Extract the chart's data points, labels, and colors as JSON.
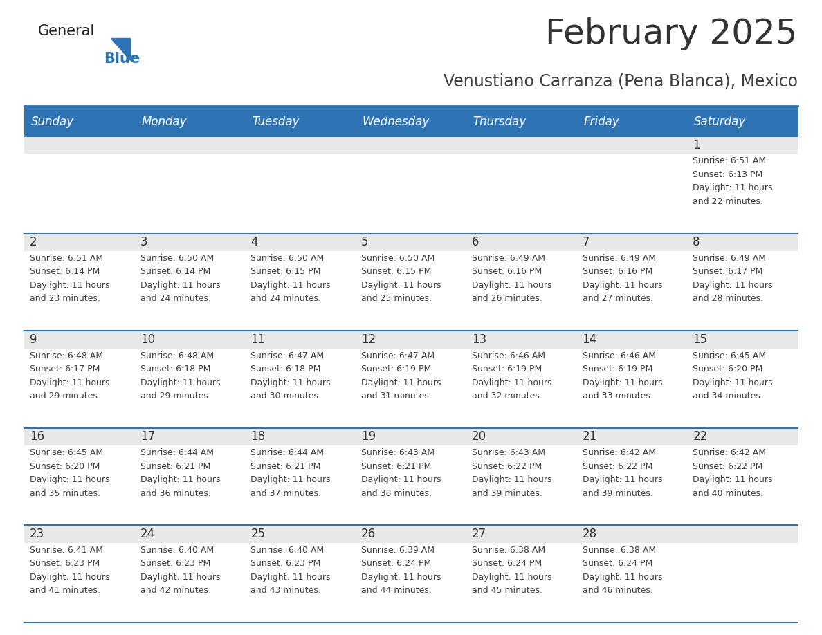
{
  "title": "February 2025",
  "subtitle": "Venustiano Carranza (Pena Blanca), Mexico",
  "header_color": "#2E74B5",
  "header_text_color": "#FFFFFF",
  "background_color": "#FFFFFF",
  "cell_day_bg": "#E8E8E8",
  "cell_content_bg": "#FFFFFF",
  "separator_color": "#2E74B5",
  "day_headers": [
    "Sunday",
    "Monday",
    "Tuesday",
    "Wednesday",
    "Thursday",
    "Friday",
    "Saturday"
  ],
  "text_color": "#404040",
  "date_color": "#333333",
  "logo_general_color": "#222222",
  "logo_blue_color": "#2E74B5",
  "logo_triangle_color": "#2E74B5",
  "calendar_data": [
    [
      null,
      null,
      null,
      null,
      null,
      null,
      {
        "day": 1,
        "sunrise": "6:51 AM",
        "sunset": "6:13 PM",
        "daylight": "11 hours and 22 minutes."
      }
    ],
    [
      {
        "day": 2,
        "sunrise": "6:51 AM",
        "sunset": "6:14 PM",
        "daylight": "11 hours and 23 minutes."
      },
      {
        "day": 3,
        "sunrise": "6:50 AM",
        "sunset": "6:14 PM",
        "daylight": "11 hours and 24 minutes."
      },
      {
        "day": 4,
        "sunrise": "6:50 AM",
        "sunset": "6:15 PM",
        "daylight": "11 hours and 24 minutes."
      },
      {
        "day": 5,
        "sunrise": "6:50 AM",
        "sunset": "6:15 PM",
        "daylight": "11 hours and 25 minutes."
      },
      {
        "day": 6,
        "sunrise": "6:49 AM",
        "sunset": "6:16 PM",
        "daylight": "11 hours and 26 minutes."
      },
      {
        "day": 7,
        "sunrise": "6:49 AM",
        "sunset": "6:16 PM",
        "daylight": "11 hours and 27 minutes."
      },
      {
        "day": 8,
        "sunrise": "6:49 AM",
        "sunset": "6:17 PM",
        "daylight": "11 hours and 28 minutes."
      }
    ],
    [
      {
        "day": 9,
        "sunrise": "6:48 AM",
        "sunset": "6:17 PM",
        "daylight": "11 hours and 29 minutes."
      },
      {
        "day": 10,
        "sunrise": "6:48 AM",
        "sunset": "6:18 PM",
        "daylight": "11 hours and 29 minutes."
      },
      {
        "day": 11,
        "sunrise": "6:47 AM",
        "sunset": "6:18 PM",
        "daylight": "11 hours and 30 minutes."
      },
      {
        "day": 12,
        "sunrise": "6:47 AM",
        "sunset": "6:19 PM",
        "daylight": "11 hours and 31 minutes."
      },
      {
        "day": 13,
        "sunrise": "6:46 AM",
        "sunset": "6:19 PM",
        "daylight": "11 hours and 32 minutes."
      },
      {
        "day": 14,
        "sunrise": "6:46 AM",
        "sunset": "6:19 PM",
        "daylight": "11 hours and 33 minutes."
      },
      {
        "day": 15,
        "sunrise": "6:45 AM",
        "sunset": "6:20 PM",
        "daylight": "11 hours and 34 minutes."
      }
    ],
    [
      {
        "day": 16,
        "sunrise": "6:45 AM",
        "sunset": "6:20 PM",
        "daylight": "11 hours and 35 minutes."
      },
      {
        "day": 17,
        "sunrise": "6:44 AM",
        "sunset": "6:21 PM",
        "daylight": "11 hours and 36 minutes."
      },
      {
        "day": 18,
        "sunrise": "6:44 AM",
        "sunset": "6:21 PM",
        "daylight": "11 hours and 37 minutes."
      },
      {
        "day": 19,
        "sunrise": "6:43 AM",
        "sunset": "6:21 PM",
        "daylight": "11 hours and 38 minutes."
      },
      {
        "day": 20,
        "sunrise": "6:43 AM",
        "sunset": "6:22 PM",
        "daylight": "11 hours and 39 minutes."
      },
      {
        "day": 21,
        "sunrise": "6:42 AM",
        "sunset": "6:22 PM",
        "daylight": "11 hours and 39 minutes."
      },
      {
        "day": 22,
        "sunrise": "6:42 AM",
        "sunset": "6:22 PM",
        "daylight": "11 hours and 40 minutes."
      }
    ],
    [
      {
        "day": 23,
        "sunrise": "6:41 AM",
        "sunset": "6:23 PM",
        "daylight": "11 hours and 41 minutes."
      },
      {
        "day": 24,
        "sunrise": "6:40 AM",
        "sunset": "6:23 PM",
        "daylight": "11 hours and 42 minutes."
      },
      {
        "day": 25,
        "sunrise": "6:40 AM",
        "sunset": "6:23 PM",
        "daylight": "11 hours and 43 minutes."
      },
      {
        "day": 26,
        "sunrise": "6:39 AM",
        "sunset": "6:24 PM",
        "daylight": "11 hours and 44 minutes."
      },
      {
        "day": 27,
        "sunrise": "6:38 AM",
        "sunset": "6:24 PM",
        "daylight": "11 hours and 45 minutes."
      },
      {
        "day": 28,
        "sunrise": "6:38 AM",
        "sunset": "6:24 PM",
        "daylight": "11 hours and 46 minutes."
      },
      null
    ]
  ]
}
